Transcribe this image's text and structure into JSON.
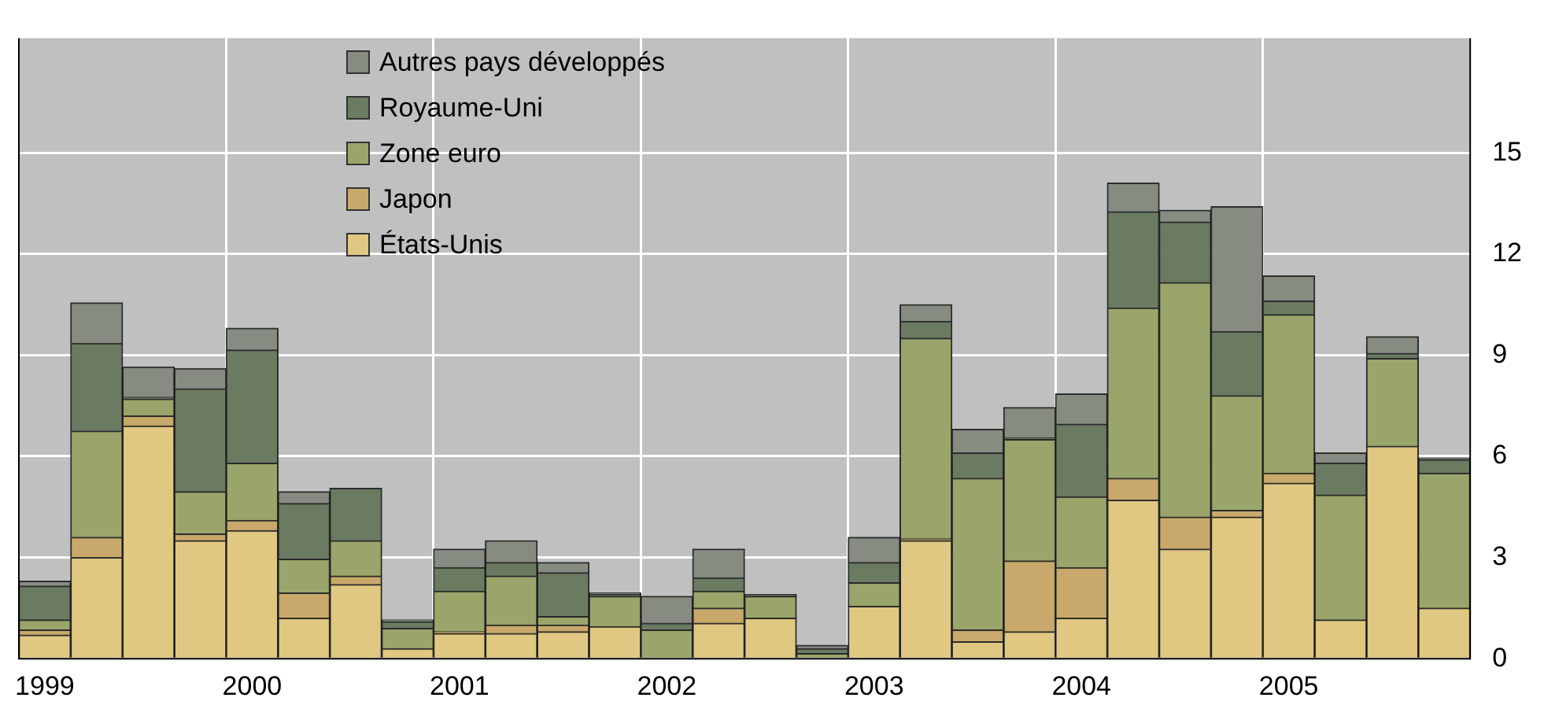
{
  "chart_data": {
    "type": "bar",
    "stacked": true,
    "categories": [
      "1999",
      null,
      null,
      null,
      "2000",
      null,
      null,
      null,
      "2001",
      null,
      null,
      null,
      "2002",
      null,
      null,
      null,
      "2003",
      null,
      null,
      null,
      "2004",
      null,
      null,
      null,
      "2005",
      null,
      null,
      null
    ],
    "series": [
      {
        "name": "États-Unis",
        "color": "#e0c882",
        "values": [
          0.7,
          3.0,
          6.9,
          3.5,
          3.8,
          1.2,
          2.2,
          0.3,
          0.75,
          0.75,
          0.8,
          0.95,
          0,
          1.05,
          1.2,
          null,
          1.55,
          3.5,
          0.5,
          0.8,
          1.2,
          4.7,
          3.25,
          4.2,
          5.2,
          1.15,
          6.3,
          1.5
        ]
      },
      {
        "name": "Japon",
        "color": "#c8a96b",
        "values": [
          0.15,
          0.6,
          0.3,
          0.2,
          0.3,
          0.75,
          0.25,
          0,
          0.05,
          0.25,
          0.2,
          0,
          0,
          0.45,
          0,
          0,
          0,
          0.05,
          0.35,
          2.1,
          1.5,
          0.65,
          0.95,
          0.2,
          0.3,
          0,
          0,
          0
        ]
      },
      {
        "name": "Zone euro",
        "color": "#9aa56b",
        "values": [
          0.3,
          3.15,
          0.5,
          1.25,
          1.7,
          1.0,
          1.05,
          0.6,
          1.2,
          1.45,
          0.25,
          0.9,
          0.85,
          0.5,
          0.65,
          0.15,
          0.7,
          5.95,
          4.5,
          3.6,
          2.1,
          5.05,
          6.95,
          3.4,
          4.7,
          3.7,
          2.6,
          4.0
        ]
      },
      {
        "name": "Royaume-Uni",
        "color": "#6b7b62",
        "values": [
          1.0,
          2.6,
          0.05,
          3.05,
          3.35,
          1.65,
          1.55,
          0.2,
          0.7,
          0.4,
          1.3,
          0.05,
          0.2,
          0.4,
          0.05,
          0.15,
          0.6,
          0.5,
          0.75,
          0.05,
          2.15,
          2.85,
          1.8,
          1.9,
          0.4,
          0.95,
          0.15,
          0.4
        ]
      },
      {
        "name": "Autres pays développés",
        "color": "#868c82",
        "values": [
          0.15,
          1.2,
          0.9,
          0.6,
          0.65,
          0.35,
          0,
          0.05,
          0.55,
          0.65,
          0.3,
          0.05,
          0.8,
          0.85,
          0,
          0.1,
          0.75,
          0.5,
          0.7,
          0.9,
          0.9,
          0.85,
          0.35,
          3.7,
          0.75,
          0.3,
          0.5,
          0.05
        ]
      }
    ],
    "ylim": [
      0,
      18.4
    ],
    "yticks": [
      0,
      3,
      6,
      9,
      12,
      15
    ],
    "grid": true,
    "legend": "top left"
  }
}
